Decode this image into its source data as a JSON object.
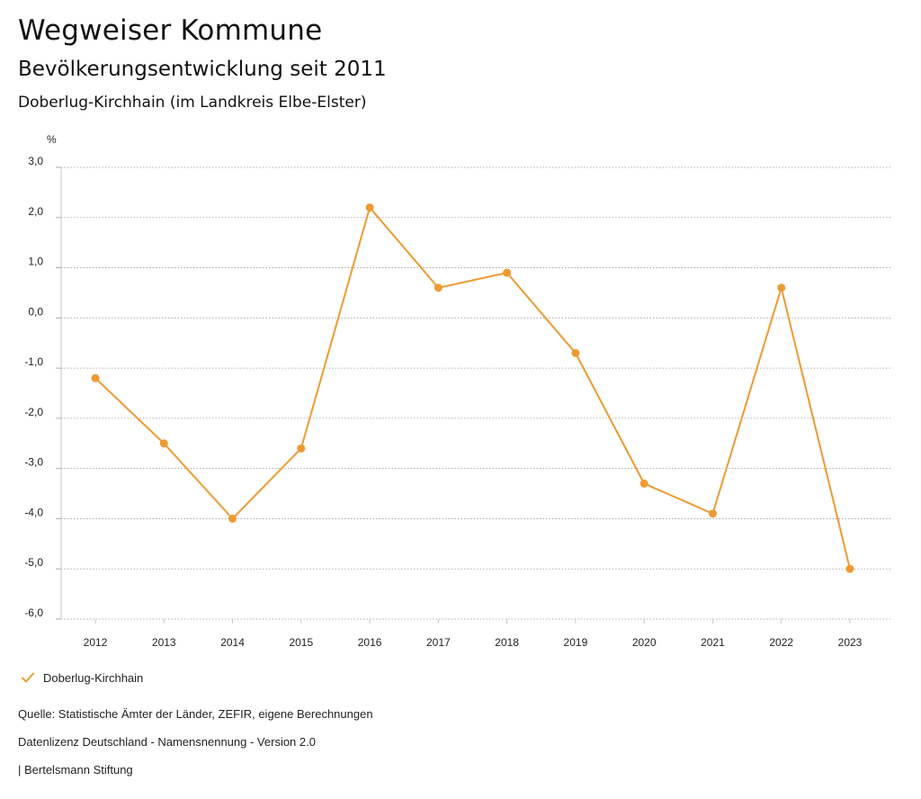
{
  "header": {
    "title": "Wegweiser Kommune",
    "subtitle": "Bevölkerungsentwicklung seit 2011",
    "region": "Doberlug-Kirchhain (im Landkreis Elbe-Elster)"
  },
  "chart_data": {
    "type": "line",
    "title": "Bevölkerungsentwicklung seit 2011",
    "ylabel": "%",
    "xlabel": "",
    "categories": [
      "2012",
      "2013",
      "2014",
      "2015",
      "2016",
      "2017",
      "2018",
      "2019",
      "2020",
      "2021",
      "2022",
      "2023"
    ],
    "series": [
      {
        "name": "Doberlug-Kirchhain",
        "values": [
          -1.2,
          -2.5,
          -4.0,
          -2.6,
          2.2,
          0.6,
          0.9,
          -0.7,
          -3.3,
          -3.9,
          0.6,
          -5.0
        ]
      }
    ],
    "ylim": [
      -6,
      3
    ],
    "yticks": [
      3,
      2,
      1,
      0,
      -1,
      -2,
      -3,
      -4,
      -5,
      -6
    ],
    "ytick_labels": [
      "3,0",
      "2,0",
      "1,0",
      "0,0",
      "-1,0",
      "-2,0",
      "-3,0",
      "-4,0",
      "-5,0",
      "-6,0"
    ],
    "grid": true,
    "legend_position": "bottom-left",
    "color": "#ee9a33"
  },
  "legend": {
    "label": "Doberlug-Kirchhain"
  },
  "footer": {
    "source": "Quelle: Statistische Ämter der Länder, ZEFIR, eigene Berechnungen",
    "license": "Datenlizenz Deutschland - Namensnennung - Version 2.0",
    "publisher": "| Bertelsmann Stiftung"
  }
}
